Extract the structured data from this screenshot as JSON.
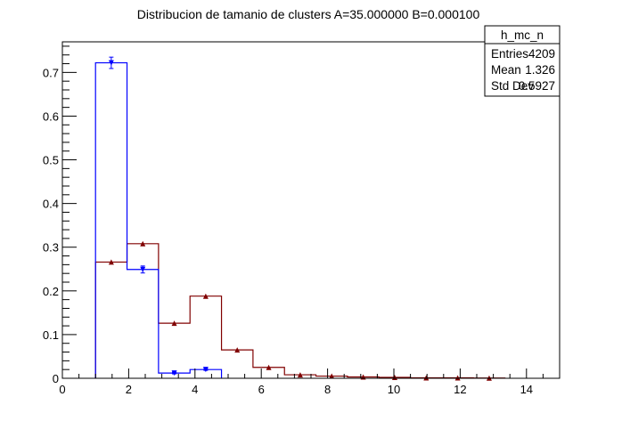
{
  "chart_data": {
    "type": "histogram",
    "title": "Distribucion de tamanio de clusters A=35.000000  B=0.000100",
    "xlabel": "",
    "ylabel": "",
    "xlim": [
      0,
      15
    ],
    "ylim": [
      0,
      0.77
    ],
    "x_ticks": [
      "0",
      "2",
      "4",
      "6",
      "8",
      "10",
      "12",
      "14"
    ],
    "y_ticks": [
      "0",
      "0.1",
      "0.2",
      "0.3",
      "0.4",
      "0.5",
      "0.6",
      "0.7"
    ],
    "grid": false,
    "series": [
      {
        "color": "#0000ff",
        "marker": "triangle-down",
        "bins": [
          {
            "x0": 1.0,
            "x1": 1.95,
            "y": 0.722,
            "err": 0.013
          },
          {
            "x0": 1.95,
            "x1": 2.9,
            "y": 0.249,
            "err": 0.008
          },
          {
            "x0": 2.9,
            "x1": 3.85,
            "y": 0.012,
            "err": 0.002
          },
          {
            "x0": 3.85,
            "x1": 4.8,
            "y": 0.02,
            "err": 0.002
          }
        ]
      },
      {
        "color": "#800000",
        "marker": "triangle-up",
        "bins": [
          {
            "x0": 1.0,
            "x1": 1.95,
            "y": 0.266
          },
          {
            "x0": 1.95,
            "x1": 2.9,
            "y": 0.308
          },
          {
            "x0": 2.9,
            "x1": 3.85,
            "y": 0.126
          },
          {
            "x0": 3.85,
            "x1": 4.8,
            "y": 0.188
          },
          {
            "x0": 4.8,
            "x1": 5.75,
            "y": 0.065
          },
          {
            "x0": 5.75,
            "x1": 6.7,
            "y": 0.025
          },
          {
            "x0": 6.7,
            "x1": 7.65,
            "y": 0.008
          },
          {
            "x0": 7.65,
            "x1": 8.6,
            "y": 0.005
          },
          {
            "x0": 8.6,
            "x1": 9.55,
            "y": 0.003
          },
          {
            "x0": 9.55,
            "x1": 10.5,
            "y": 0.002
          },
          {
            "x0": 10.5,
            "x1": 11.45,
            "y": 0.001
          },
          {
            "x0": 11.45,
            "x1": 12.4,
            "y": 0.001
          },
          {
            "x0": 12.4,
            "x1": 13.35,
            "y": 0.0005
          }
        ]
      }
    ]
  },
  "stats_box": {
    "name": "h_mc_n",
    "rows": [
      {
        "label": "Entries",
        "value": "4209"
      },
      {
        "label": "Mean",
        "value": "1.326"
      },
      {
        "label": "Std Dev",
        "value": "0.5927"
      }
    ]
  }
}
